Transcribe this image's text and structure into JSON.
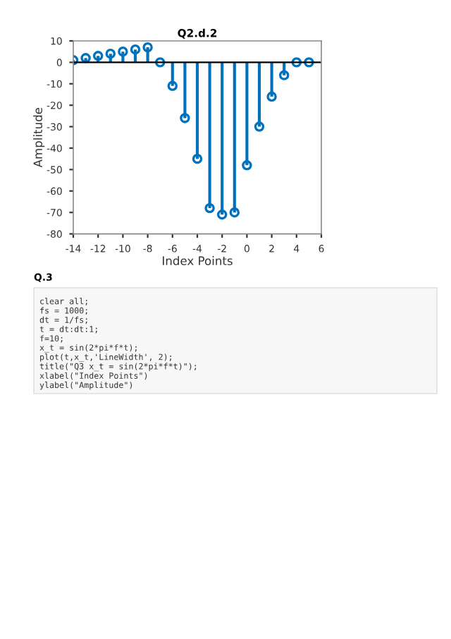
{
  "chart_data": {
    "type": "lollipop",
    "title": "Q2.d.2",
    "xlabel": "Index Points",
    "ylabel": "Amplitude",
    "x": [
      -14,
      -13,
      -12,
      -11,
      -10,
      -9,
      -8,
      -7,
      -6,
      -5,
      -4,
      -3,
      -2,
      -1,
      0,
      1,
      2,
      3,
      4,
      5
    ],
    "series": [
      {
        "color": "#0072bd",
        "values": [
          1,
          2,
          3,
          4,
          5,
          6,
          7,
          0,
          -11,
          -26,
          -45,
          -68,
          -71,
          -70,
          -48,
          -30,
          -16,
          -6,
          0,
          0
        ]
      }
    ],
    "xlim": [
      -14,
      6
    ],
    "xticks": [
      -14,
      -12,
      -10,
      -8,
      -6,
      -4,
      -2,
      0,
      2,
      4,
      6
    ],
    "ylim": [
      -80,
      10
    ],
    "yticks": [
      -80,
      -70,
      -60,
      -50,
      -40,
      -30,
      -20,
      -10,
      0,
      10
    ],
    "marker": "circle",
    "grid": false,
    "legend": false,
    "annotations": [
      "Q.3",
      "clear all;",
      "fs = 1000;",
      "dt = 1/fs;",
      "t = dt:dt:1;",
      "f=10;",
      "x_t = sin(2*pi*f*t);",
      "plot(t,x_t,'LineWidth', 2);",
      "title(\"Q3 x_t = sin(2*pi*f*t)\");",
      "xlabel(\"Index Points\")",
      "ylabel(\"Amplitude\")"
    ]
  }
}
